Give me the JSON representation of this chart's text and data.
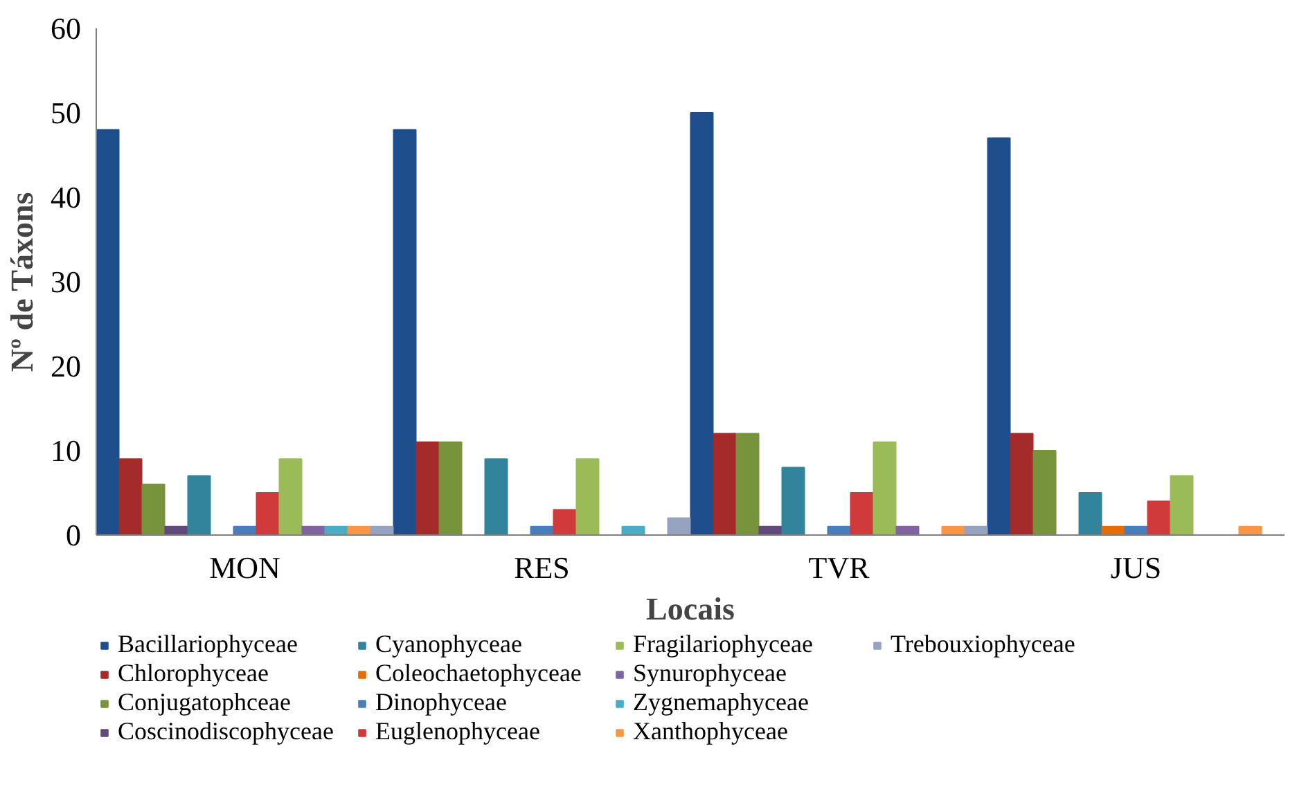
{
  "chart_data": {
    "type": "bar",
    "xlabel": "Locais",
    "ylabel": "Nº de Táxons",
    "categories": [
      "MON",
      "RES",
      "TVR",
      "JUS"
    ],
    "ylim": [
      0,
      60
    ],
    "yticks": [
      0,
      10,
      20,
      30,
      40,
      50,
      60
    ],
    "grid": false,
    "legend": "bottom",
    "series": [
      {
        "name": "Bacillariophyceae",
        "color": "#1f4e8c",
        "values": [
          48,
          48,
          50,
          47
        ]
      },
      {
        "name": "Chlorophyceae",
        "color": "#a52a2a",
        "values": [
          9,
          11,
          12,
          12
        ]
      },
      {
        "name": "Conjugatophceae",
        "color": "#77933c",
        "values": [
          6,
          11,
          12,
          10
        ]
      },
      {
        "name": "Coscinodiscophyceae",
        "color": "#604a7b",
        "values": [
          1,
          0,
          1,
          0
        ]
      },
      {
        "name": "Cyanophyceae",
        "color": "#31849b",
        "values": [
          7,
          9,
          8,
          5
        ]
      },
      {
        "name": "Coleochaetophyceae",
        "color": "#e46c0a",
        "values": [
          0,
          0,
          0,
          1
        ]
      },
      {
        "name": "Dinophyceae",
        "color": "#4a7ebb",
        "values": [
          1,
          1,
          1,
          1
        ]
      },
      {
        "name": "Euglenophyceae",
        "color": "#d03a3a",
        "values": [
          5,
          3,
          5,
          4
        ]
      },
      {
        "name": "Fragilariophyceae",
        "color": "#9bbb59",
        "values": [
          9,
          9,
          11,
          7
        ]
      },
      {
        "name": "Synurophyceae",
        "color": "#8064a2",
        "values": [
          1,
          0,
          1,
          0
        ]
      },
      {
        "name": "Zygnemaphyceae",
        "color": "#4bacc6",
        "values": [
          1,
          1,
          0,
          0
        ]
      },
      {
        "name": "Xanthophyceae",
        "color": "#f79646",
        "values": [
          1,
          0,
          1,
          1
        ]
      },
      {
        "name": "Trebouxiophyceae",
        "color": "#95a3c0",
        "values": [
          1,
          2,
          1,
          0
        ]
      }
    ]
  }
}
